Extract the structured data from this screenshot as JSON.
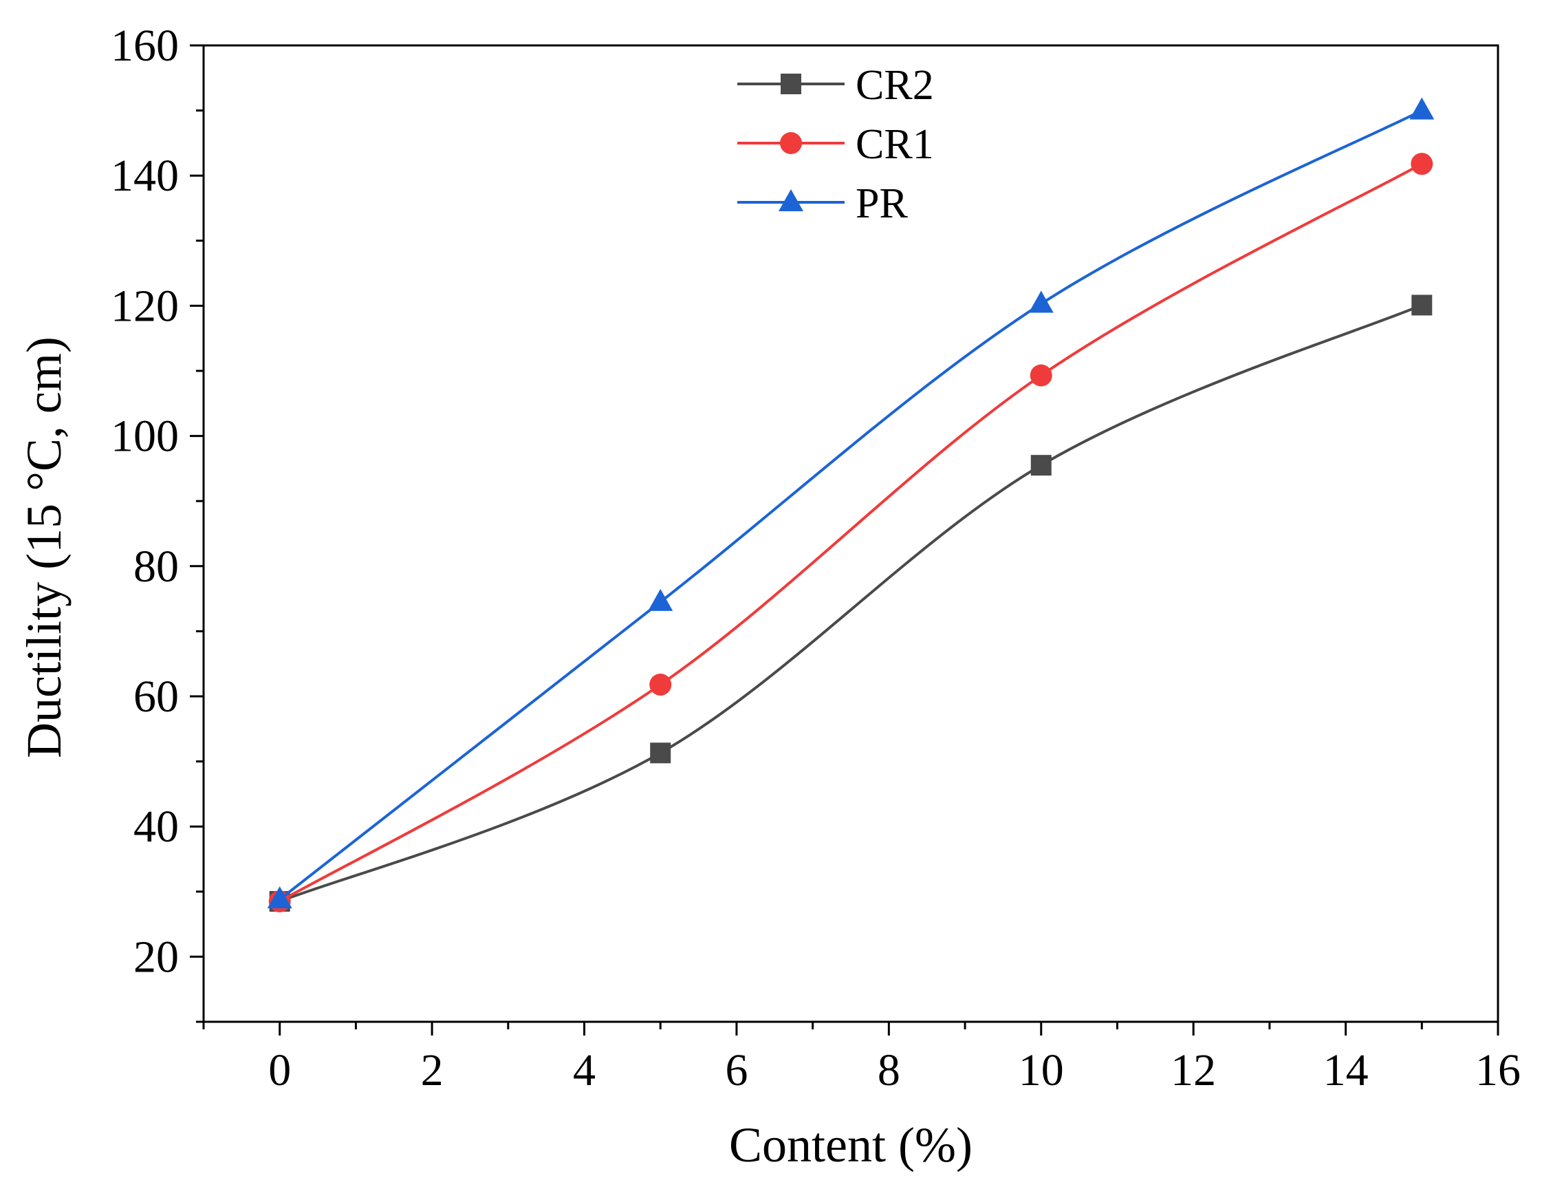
{
  "chart_data": {
    "type": "line",
    "title": "",
    "xlabel": "Content (%)",
    "ylabel": "Ductility (15 °C, cm)",
    "xlim": [
      -1,
      16
    ],
    "ylim": [
      10,
      160
    ],
    "x_ticks": [
      0,
      2,
      4,
      6,
      8,
      10,
      12,
      14,
      16
    ],
    "y_ticks": [
      20,
      40,
      60,
      80,
      100,
      120,
      140,
      160
    ],
    "x_minor_step": 1,
    "y_minor_step": 10,
    "legend_position": "top-center",
    "grid": false,
    "x": [
      0,
      5,
      10,
      15
    ],
    "series": [
      {
        "name": "CR2",
        "values": [
          28.5,
          51.3,
          95.5,
          120.1
        ],
        "color": "#4a4a4a",
        "marker": "square"
      },
      {
        "name": "CR1",
        "values": [
          28.5,
          61.8,
          109.3,
          141.8
        ],
        "color": "#f03b3b",
        "marker": "circle"
      },
      {
        "name": "PR",
        "values": [
          28.8,
          74.5,
          120.3,
          150.0
        ],
        "color": "#1c64d6",
        "marker": "triangle"
      }
    ]
  }
}
